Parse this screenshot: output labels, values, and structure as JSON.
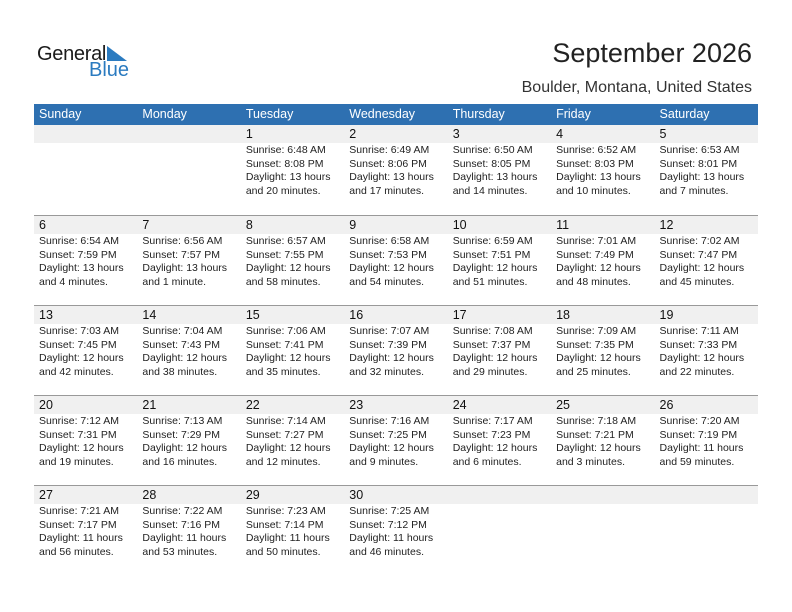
{
  "logo": {
    "word1": "General",
    "word2": "Blue"
  },
  "title": "September 2026",
  "location": "Boulder, Montana, United States",
  "colors": {
    "header": "#2e70b1",
    "band": "#f0f0f0",
    "logo_blue": "#2b7bc0"
  },
  "days": [
    "Sunday",
    "Monday",
    "Tuesday",
    "Wednesday",
    "Thursday",
    "Friday",
    "Saturday"
  ],
  "weeks": [
    [
      null,
      null,
      {
        "day": "1",
        "sunrise": "Sunrise: 6:48 AM",
        "sunset": "Sunset: 8:08 PM",
        "daylight": "Daylight: 13 hours",
        "daylight2": "and 20 minutes."
      },
      {
        "day": "2",
        "sunrise": "Sunrise: 6:49 AM",
        "sunset": "Sunset: 8:06 PM",
        "daylight": "Daylight: 13 hours",
        "daylight2": "and 17 minutes."
      },
      {
        "day": "3",
        "sunrise": "Sunrise: 6:50 AM",
        "sunset": "Sunset: 8:05 PM",
        "daylight": "Daylight: 13 hours",
        "daylight2": "and 14 minutes."
      },
      {
        "day": "4",
        "sunrise": "Sunrise: 6:52 AM",
        "sunset": "Sunset: 8:03 PM",
        "daylight": "Daylight: 13 hours",
        "daylight2": "and 10 minutes."
      },
      {
        "day": "5",
        "sunrise": "Sunrise: 6:53 AM",
        "sunset": "Sunset: 8:01 PM",
        "daylight": "Daylight: 13 hours",
        "daylight2": "and 7 minutes."
      }
    ],
    [
      {
        "day": "6",
        "sunrise": "Sunrise: 6:54 AM",
        "sunset": "Sunset: 7:59 PM",
        "daylight": "Daylight: 13 hours",
        "daylight2": "and 4 minutes."
      },
      {
        "day": "7",
        "sunrise": "Sunrise: 6:56 AM",
        "sunset": "Sunset: 7:57 PM",
        "daylight": "Daylight: 13 hours",
        "daylight2": "and 1 minute."
      },
      {
        "day": "8",
        "sunrise": "Sunrise: 6:57 AM",
        "sunset": "Sunset: 7:55 PM",
        "daylight": "Daylight: 12 hours",
        "daylight2": "and 58 minutes."
      },
      {
        "day": "9",
        "sunrise": "Sunrise: 6:58 AM",
        "sunset": "Sunset: 7:53 PM",
        "daylight": "Daylight: 12 hours",
        "daylight2": "and 54 minutes."
      },
      {
        "day": "10",
        "sunrise": "Sunrise: 6:59 AM",
        "sunset": "Sunset: 7:51 PM",
        "daylight": "Daylight: 12 hours",
        "daylight2": "and 51 minutes."
      },
      {
        "day": "11",
        "sunrise": "Sunrise: 7:01 AM",
        "sunset": "Sunset: 7:49 PM",
        "daylight": "Daylight: 12 hours",
        "daylight2": "and 48 minutes."
      },
      {
        "day": "12",
        "sunrise": "Sunrise: 7:02 AM",
        "sunset": "Sunset: 7:47 PM",
        "daylight": "Daylight: 12 hours",
        "daylight2": "and 45 minutes."
      }
    ],
    [
      {
        "day": "13",
        "sunrise": "Sunrise: 7:03 AM",
        "sunset": "Sunset: 7:45 PM",
        "daylight": "Daylight: 12 hours",
        "daylight2": "and 42 minutes."
      },
      {
        "day": "14",
        "sunrise": "Sunrise: 7:04 AM",
        "sunset": "Sunset: 7:43 PM",
        "daylight": "Daylight: 12 hours",
        "daylight2": "and 38 minutes."
      },
      {
        "day": "15",
        "sunrise": "Sunrise: 7:06 AM",
        "sunset": "Sunset: 7:41 PM",
        "daylight": "Daylight: 12 hours",
        "daylight2": "and 35 minutes."
      },
      {
        "day": "16",
        "sunrise": "Sunrise: 7:07 AM",
        "sunset": "Sunset: 7:39 PM",
        "daylight": "Daylight: 12 hours",
        "daylight2": "and 32 minutes."
      },
      {
        "day": "17",
        "sunrise": "Sunrise: 7:08 AM",
        "sunset": "Sunset: 7:37 PM",
        "daylight": "Daylight: 12 hours",
        "daylight2": "and 29 minutes."
      },
      {
        "day": "18",
        "sunrise": "Sunrise: 7:09 AM",
        "sunset": "Sunset: 7:35 PM",
        "daylight": "Daylight: 12 hours",
        "daylight2": "and 25 minutes."
      },
      {
        "day": "19",
        "sunrise": "Sunrise: 7:11 AM",
        "sunset": "Sunset: 7:33 PM",
        "daylight": "Daylight: 12 hours",
        "daylight2": "and 22 minutes."
      }
    ],
    [
      {
        "day": "20",
        "sunrise": "Sunrise: 7:12 AM",
        "sunset": "Sunset: 7:31 PM",
        "daylight": "Daylight: 12 hours",
        "daylight2": "and 19 minutes."
      },
      {
        "day": "21",
        "sunrise": "Sunrise: 7:13 AM",
        "sunset": "Sunset: 7:29 PM",
        "daylight": "Daylight: 12 hours",
        "daylight2": "and 16 minutes."
      },
      {
        "day": "22",
        "sunrise": "Sunrise: 7:14 AM",
        "sunset": "Sunset: 7:27 PM",
        "daylight": "Daylight: 12 hours",
        "daylight2": "and 12 minutes."
      },
      {
        "day": "23",
        "sunrise": "Sunrise: 7:16 AM",
        "sunset": "Sunset: 7:25 PM",
        "daylight": "Daylight: 12 hours",
        "daylight2": "and 9 minutes."
      },
      {
        "day": "24",
        "sunrise": "Sunrise: 7:17 AM",
        "sunset": "Sunset: 7:23 PM",
        "daylight": "Daylight: 12 hours",
        "daylight2": "and 6 minutes."
      },
      {
        "day": "25",
        "sunrise": "Sunrise: 7:18 AM",
        "sunset": "Sunset: 7:21 PM",
        "daylight": "Daylight: 12 hours",
        "daylight2": "and 3 minutes."
      },
      {
        "day": "26",
        "sunrise": "Sunrise: 7:20 AM",
        "sunset": "Sunset: 7:19 PM",
        "daylight": "Daylight: 11 hours",
        "daylight2": "and 59 minutes."
      }
    ],
    [
      {
        "day": "27",
        "sunrise": "Sunrise: 7:21 AM",
        "sunset": "Sunset: 7:17 PM",
        "daylight": "Daylight: 11 hours",
        "daylight2": "and 56 minutes."
      },
      {
        "day": "28",
        "sunrise": "Sunrise: 7:22 AM",
        "sunset": "Sunset: 7:16 PM",
        "daylight": "Daylight: 11 hours",
        "daylight2": "and 53 minutes."
      },
      {
        "day": "29",
        "sunrise": "Sunrise: 7:23 AM",
        "sunset": "Sunset: 7:14 PM",
        "daylight": "Daylight: 11 hours",
        "daylight2": "and 50 minutes."
      },
      {
        "day": "30",
        "sunrise": "Sunrise: 7:25 AM",
        "sunset": "Sunset: 7:12 PM",
        "daylight": "Daylight: 11 hours",
        "daylight2": "and 46 minutes."
      },
      null,
      null,
      null
    ]
  ]
}
